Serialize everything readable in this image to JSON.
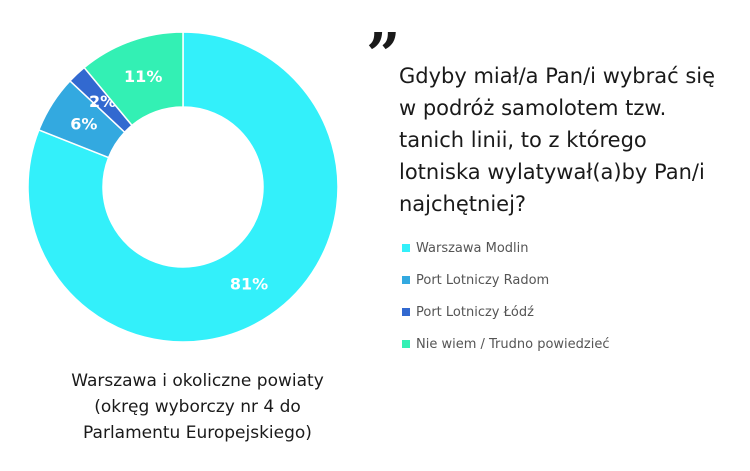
{
  "chart_data": {
    "type": "pie",
    "categories": [
      "Warszawa Modlin",
      "Port Lotniczy Radom",
      "Port Lotniczy Łódź",
      "Nie wiem / Trudno powiedzieć"
    ],
    "values": [
      81,
      6,
      2,
      11
    ],
    "data_labels": [
      "81%",
      "6%",
      "2%",
      "11%"
    ],
    "colors": [
      "#33F0FA",
      "#33A9E0",
      "#3269D0",
      "#33F0B4"
    ],
    "legend_placement": "right"
  },
  "caption": {
    "line1": "Warszawa i okoliczne powiaty",
    "line2": "(okręg wyborczy nr 4 do",
    "line3": "Parlamentu Europejskiego)"
  },
  "question": {
    "quote_mark": "”",
    "line1": "Gdyby miał/a Pan/i wybrać się",
    "line2": "w podróż samolotem tzw.",
    "line3": "tanich linii, to z którego",
    "line4": "lotniska wylatywał(a)by Pan/i",
    "line5": "najchętniej?"
  }
}
